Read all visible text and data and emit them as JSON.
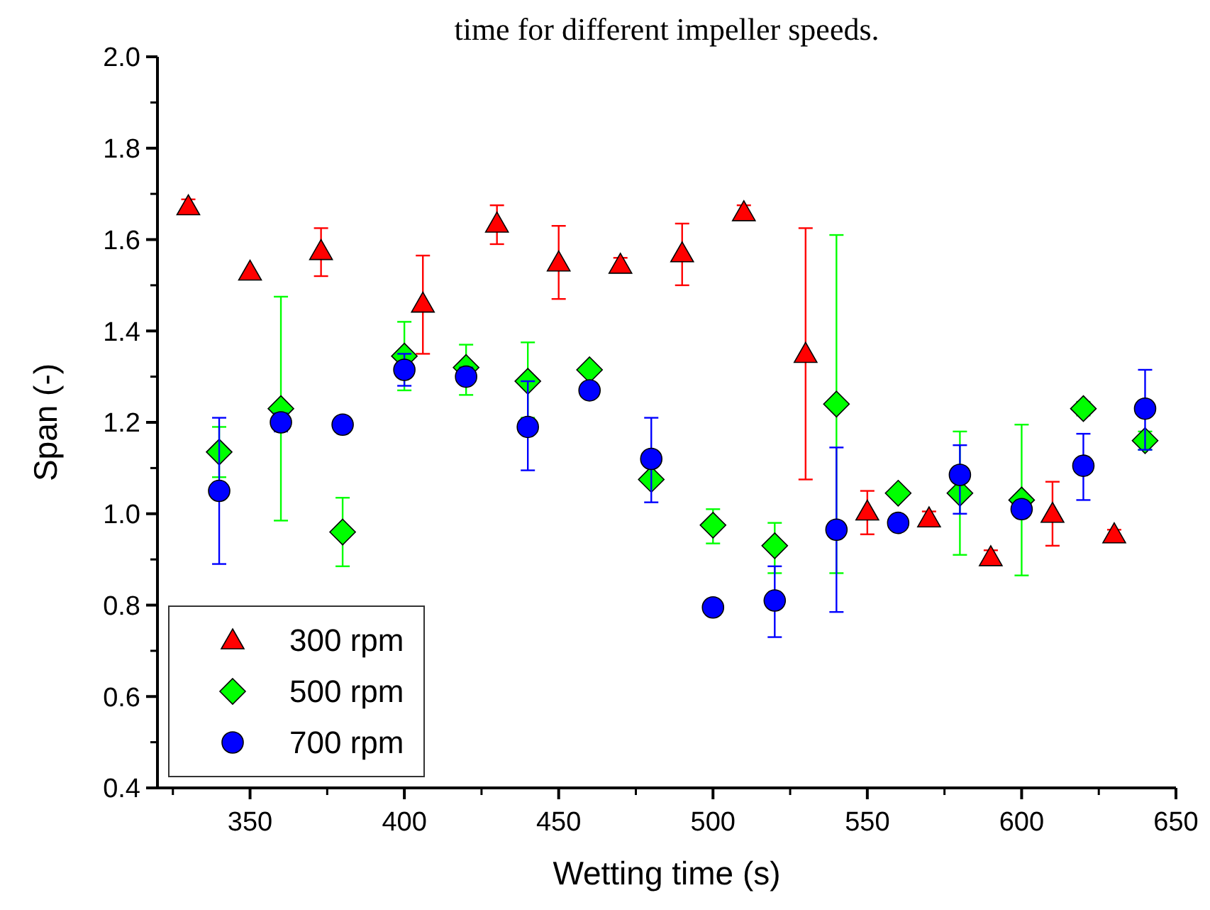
{
  "chart_data": {
    "type": "scatter",
    "title": "time for different impeller speeds.",
    "xlabel": "Wetting time (s)",
    "ylabel": "Span (-)",
    "xlim": [
      320,
      650
    ],
    "xticks": [
      350,
      400,
      450,
      500,
      550,
      600,
      650
    ],
    "ylim": [
      0.4,
      2.0
    ],
    "yticks": [
      0.4,
      0.6,
      0.8,
      {
        "value": 1,
        "label": "1.0"
      },
      1.2,
      1.4,
      1.6,
      1.8,
      {
        "value": 2,
        "label": "2.0"
      }
    ],
    "legend": "bottom left",
    "grid": false,
    "series": [
      {
        "name": "300 rpm",
        "color": "#ff0000",
        "marker": "triangle",
        "x": [
          330,
          350,
          373,
          406,
          430,
          450,
          470,
          490,
          510,
          530,
          550,
          570,
          590,
          610,
          630
        ],
        "values": [
          1.673,
          1.53,
          1.575,
          1.46,
          1.635,
          1.55,
          1.545,
          1.57,
          1.66,
          1.35,
          1.005,
          0.99,
          0.905,
          1.0,
          0.955
        ],
        "errors": [
          0.015,
          null,
          [
            1.52,
            1.625
          ],
          [
            1.35,
            1.565
          ],
          [
            1.59,
            1.675
          ],
          [
            1.47,
            1.63
          ],
          0.015,
          [
            1.5,
            1.635
          ],
          0.015,
          [
            1.075,
            1.625
          ],
          [
            0.955,
            1.05
          ],
          0.015,
          0.015,
          [
            0.93,
            1.07
          ],
          0.01
        ]
      },
      {
        "name": "500 rpm",
        "color": "#00ff00",
        "marker": "diamond",
        "x": [
          340,
          360,
          380,
          400,
          420,
          440,
          460,
          480,
          500,
          520,
          540,
          560,
          580,
          600,
          620,
          640
        ],
        "values": [
          1.135,
          1.23,
          0.96,
          1.345,
          1.32,
          1.29,
          1.315,
          1.075,
          0.975,
          0.93,
          1.24,
          1.045,
          1.045,
          1.03,
          1.23,
          1.16
        ],
        "errors": [
          [
            1.08,
            1.19
          ],
          [
            0.985,
            1.475
          ],
          [
            0.885,
            1.035
          ],
          [
            1.27,
            1.42
          ],
          [
            1.26,
            1.37
          ],
          [
            1.21,
            1.375
          ],
          null,
          null,
          [
            0.935,
            1.01
          ],
          [
            0.87,
            0.98
          ],
          [
            0.87,
            1.61
          ],
          0.01,
          [
            0.91,
            1.18
          ],
          [
            0.865,
            1.195
          ],
          0.015,
          [
            1.14,
            1.18
          ]
        ]
      },
      {
        "name": "700 rpm",
        "color": "#0000ff",
        "marker": "circle",
        "x": [
          340,
          360,
          380,
          400,
          420,
          440,
          460,
          480,
          500,
          520,
          540,
          560,
          580,
          600,
          620,
          640
        ],
        "values": [
          1.05,
          1.2,
          1.195,
          1.315,
          1.3,
          1.19,
          1.27,
          1.12,
          0.795,
          0.81,
          0.965,
          0.98,
          1.085,
          1.01,
          1.105,
          1.23
        ],
        "errors": [
          [
            0.89,
            1.21
          ],
          [
            1.18,
            1.22
          ],
          [
            1.18,
            1.21
          ],
          [
            1.28,
            1.35
          ],
          [
            1.29,
            1.32
          ],
          [
            1.095,
            1.29
          ],
          null,
          [
            1.025,
            1.21
          ],
          null,
          [
            0.73,
            0.885
          ],
          [
            0.785,
            1.145
          ],
          null,
          [
            1.0,
            1.15
          ],
          null,
          [
            1.03,
            1.175
          ],
          [
            1.14,
            1.315
          ]
        ]
      }
    ]
  }
}
